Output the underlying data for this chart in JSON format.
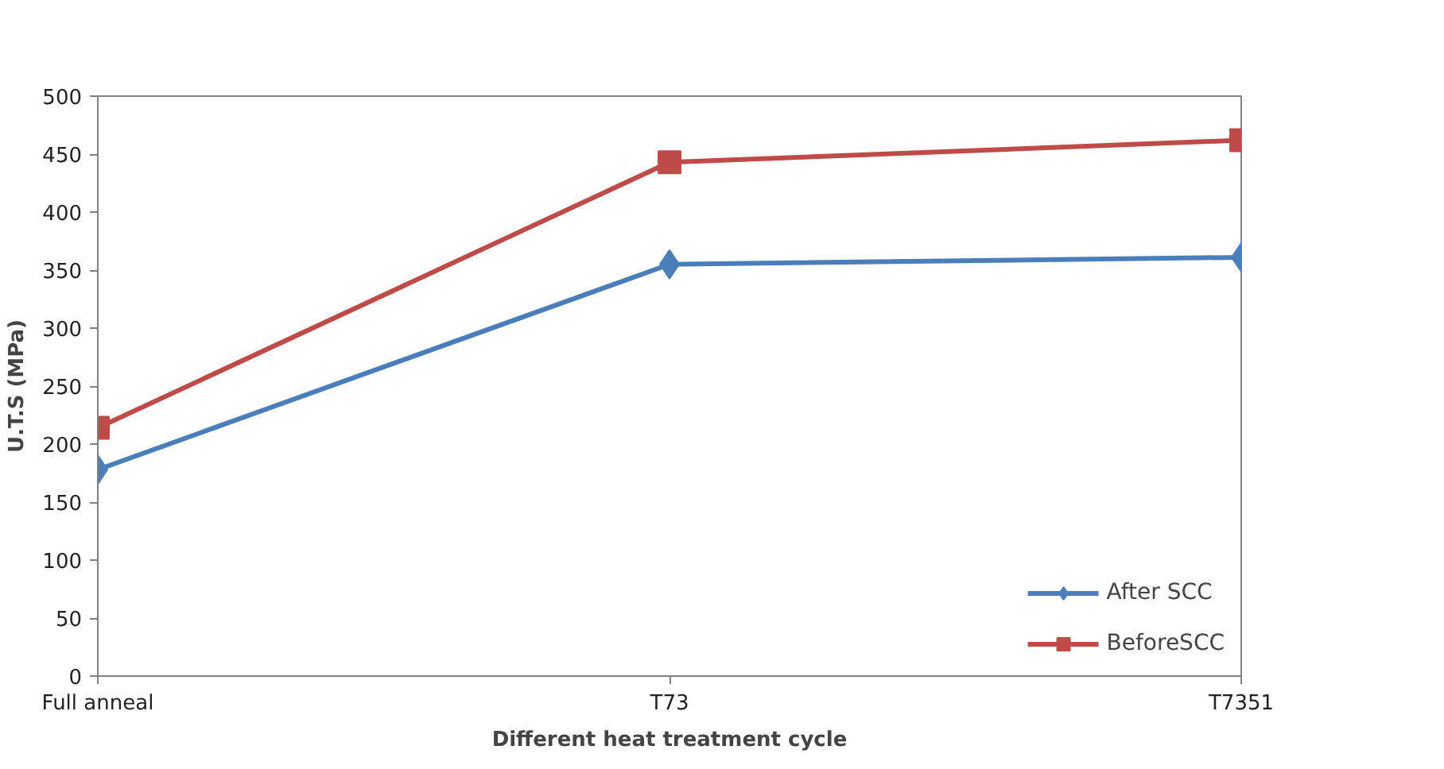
{
  "chart_data": {
    "type": "line",
    "xlabel": "Different heat treatment cycle",
    "ylabel": "U.T.S (MPa)",
    "categories": [
      "Full anneal",
      "T73",
      "T7351"
    ],
    "series": [
      {
        "name": "After SCC",
        "color": "#4a7ebb",
        "marker": "diamond",
        "values": [
          178,
          355,
          361
        ]
      },
      {
        "name": "BeforeSCC",
        "color": "#be4b48",
        "marker": "square",
        "values": [
          214,
          443,
          462
        ]
      }
    ],
    "ylim": [
      0,
      500
    ],
    "yticks": [
      0,
      50,
      100,
      150,
      200,
      250,
      300,
      350,
      400,
      450,
      500
    ],
    "grid": false,
    "legend": "bottom right",
    "line_style": "solid"
  }
}
